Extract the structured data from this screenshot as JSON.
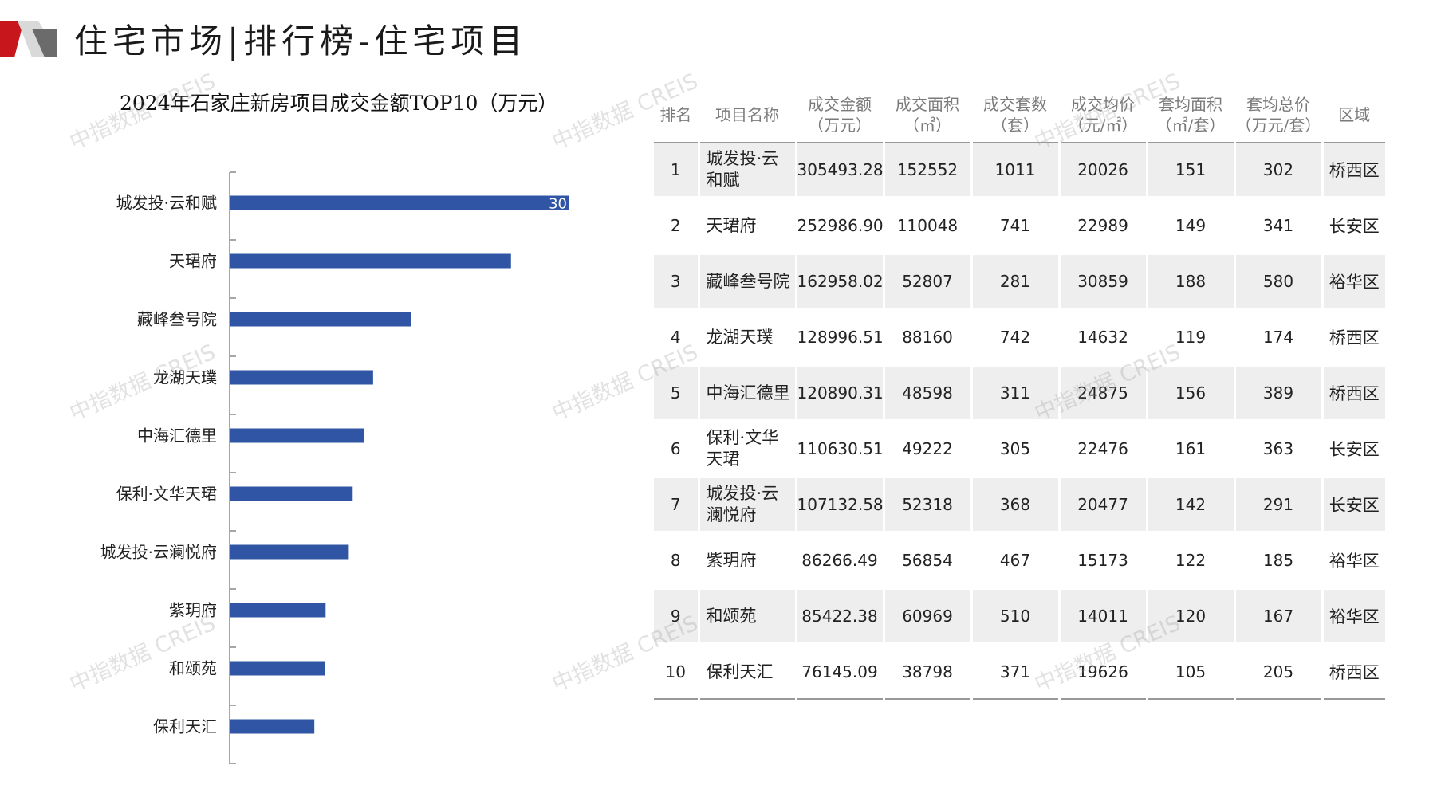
{
  "header": {
    "title": "住宅市场|排行榜-住宅项目",
    "accent_color": "#c8161d"
  },
  "watermark": "中指数据 CREIS",
  "chart_data": {
    "type": "bar",
    "orientation": "horizontal",
    "title": "2024年石家庄新房项目成交金额TOP10（万元）",
    "categories": [
      "城发投·云和赋",
      "天珺府",
      "藏峰叁号院",
      "龙湖天璞",
      "中海汇德里",
      "保利·文华天珺",
      "城发投·云澜悦府",
      "紫玥府",
      "和颂苑",
      "保利天汇"
    ],
    "values": [
      305493.28,
      252986.9,
      162958.02,
      128996.51,
      120890.31,
      110630.51,
      107132.58,
      86266.49,
      85422.38,
      76145.09
    ],
    "visible_data_label": "30",
    "bar_color": "#2f55a4",
    "xlim": [
      0,
      305493.28
    ],
    "grid": false,
    "legend": "none"
  },
  "table": {
    "headers": [
      "排名",
      "项目名称",
      "成交金额\n（万元）",
      "成交面积\n（㎡）",
      "成交套数\n（套）",
      "成交均价\n（元/㎡）",
      "套均面积\n（㎡/套）",
      "套均总价\n（万元/套）",
      "区域"
    ],
    "rows": [
      [
        "1",
        "城发投·云和赋",
        "305493.28",
        "152552",
        "1011",
        "20026",
        "151",
        "302",
        "桥西区"
      ],
      [
        "2",
        "天珺府",
        "252986.90",
        "110048",
        "741",
        "22989",
        "149",
        "341",
        "长安区"
      ],
      [
        "3",
        "藏峰叁号院",
        "162958.02",
        "52807",
        "281",
        "30859",
        "188",
        "580",
        "裕华区"
      ],
      [
        "4",
        "龙湖天璞",
        "128996.51",
        "88160",
        "742",
        "14632",
        "119",
        "174",
        "桥西区"
      ],
      [
        "5",
        "中海汇德里",
        "120890.31",
        "48598",
        "311",
        "24875",
        "156",
        "389",
        "桥西区"
      ],
      [
        "6",
        "保利·文华天珺",
        "110630.51",
        "49222",
        "305",
        "22476",
        "161",
        "363",
        "长安区"
      ],
      [
        "7",
        "城发投·云澜悦府",
        "107132.58",
        "52318",
        "368",
        "20477",
        "142",
        "291",
        "长安区"
      ],
      [
        "8",
        "紫玥府",
        "86266.49",
        "56854",
        "467",
        "15173",
        "122",
        "185",
        "裕华区"
      ],
      [
        "9",
        "和颂苑",
        "85422.38",
        "60969",
        "510",
        "14011",
        "120",
        "167",
        "裕华区"
      ],
      [
        "10",
        "保利天汇",
        "76145.09",
        "38798",
        "371",
        "19626",
        "105",
        "205",
        "桥西区"
      ]
    ]
  }
}
